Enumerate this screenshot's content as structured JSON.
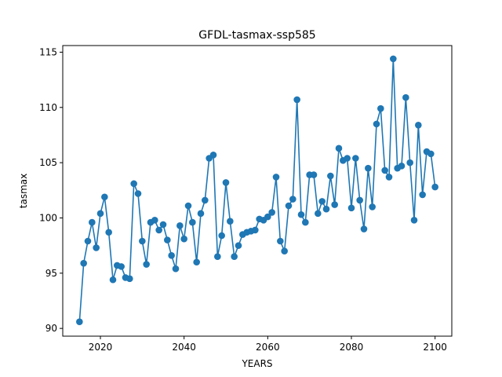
{
  "chart_data": {
    "type": "line",
    "title": "GFDL-tasmax-ssp585",
    "xlabel": "YEARS",
    "ylabel": "tasmax",
    "xlim": [
      2011,
      2104
    ],
    "ylim": [
      89.3,
      115.6
    ],
    "xticks": [
      2020,
      2040,
      2060,
      2080,
      2100
    ],
    "yticks": [
      90,
      95,
      100,
      105,
      110,
      115
    ],
    "grid": false,
    "colors": {
      "series": "#1f77b4"
    },
    "series": [
      {
        "x": [
          2015,
          2016,
          2017,
          2018,
          2019,
          2020,
          2021,
          2022,
          2023,
          2024,
          2025,
          2026,
          2027,
          2028,
          2029,
          2030,
          2031,
          2032,
          2033,
          2034,
          2035,
          2036,
          2037,
          2038,
          2039,
          2040,
          2041,
          2042,
          2043,
          2044,
          2045,
          2046,
          2047,
          2048,
          2049,
          2050,
          2051,
          2052,
          2053,
          2054,
          2055,
          2056,
          2057,
          2058,
          2059,
          2060,
          2061,
          2062,
          2063,
          2064,
          2065,
          2066,
          2067,
          2068,
          2069,
          2070,
          2071,
          2072,
          2073,
          2074,
          2075,
          2076,
          2077,
          2078,
          2079,
          2080,
          2081,
          2082,
          2083,
          2084,
          2085,
          2086,
          2087,
          2088,
          2089,
          2090,
          2091,
          2092,
          2093,
          2094,
          2095,
          2096,
          2097,
          2098,
          2099,
          2100
        ],
        "values": [
          90.6,
          95.9,
          97.9,
          99.6,
          97.3,
          100.4,
          101.9,
          98.7,
          94.4,
          95.7,
          95.6,
          94.6,
          94.5,
          103.1,
          102.2,
          97.9,
          95.8,
          99.6,
          99.8,
          98.9,
          99.4,
          98.0,
          96.6,
          95.4,
          99.3,
          98.1,
          101.1,
          99.6,
          96.0,
          100.4,
          101.6,
          105.4,
          105.7,
          96.5,
          98.4,
          103.2,
          99.7,
          96.5,
          97.5,
          98.5,
          98.7,
          98.8,
          98.9,
          99.9,
          99.8,
          100.1,
          100.5,
          103.7,
          97.9,
          97.0,
          101.1,
          101.7,
          110.7,
          100.3,
          99.6,
          103.9,
          103.9,
          100.4,
          101.5,
          100.8,
          103.8,
          101.2,
          106.3,
          105.2,
          105.4,
          100.9,
          105.4,
          101.6,
          99.0,
          104.5,
          101.0,
          108.5,
          109.9,
          104.3,
          103.7,
          114.4,
          104.5,
          104.7,
          110.9,
          105.0,
          99.8,
          108.4,
          102.1,
          106.0,
          105.8,
          102.8
        ]
      }
    ]
  }
}
